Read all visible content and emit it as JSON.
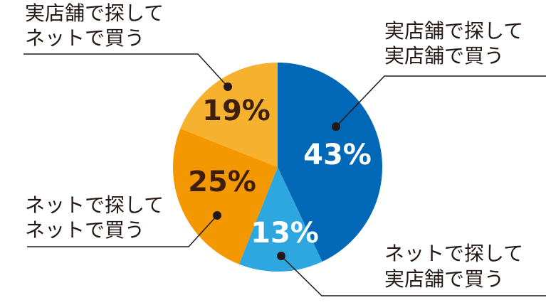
{
  "chart_data": {
    "type": "pie",
    "categories": [
      [
        "実店舗で探して",
        "実店舗で買う"
      ],
      [
        "ネットで探して",
        "実店舗で買う"
      ],
      [
        "ネットで探して",
        "ネットで買う"
      ],
      [
        "実店舗で探して",
        "ネットで買う"
      ]
    ],
    "values": [
      43,
      13,
      25,
      19
    ],
    "value_labels": [
      "43%",
      "13%",
      "25%",
      "19%"
    ],
    "colors": [
      "#0068b7",
      "#2ea7e0",
      "#f39800",
      "#f6b22f"
    ]
  }
}
